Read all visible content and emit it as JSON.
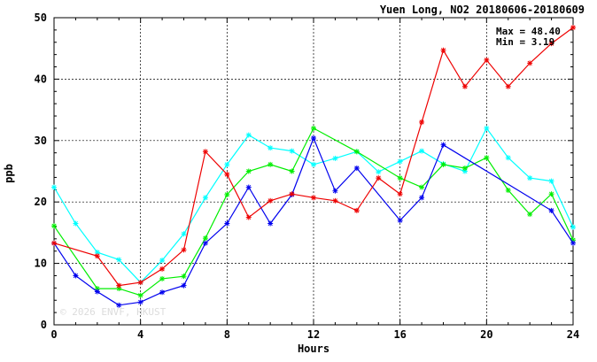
{
  "chart_data": {
    "type": "line",
    "title": "Yuen Long, NO2 20180606-20180609",
    "xlabel": "Hours",
    "ylabel": "ppb",
    "xlim": [
      0,
      24
    ],
    "ylim": [
      0,
      50
    ],
    "x_ticks": [
      0,
      4,
      8,
      12,
      16,
      20,
      24
    ],
    "y_ticks": [
      0,
      10,
      20,
      30,
      40,
      50
    ],
    "grid": true,
    "stats": {
      "max_text": "Max = 48.40",
      "min_text": "Min =  3.19"
    },
    "watermark": "© 2026  ENVF, HKUST",
    "series": [
      {
        "color": "#00ffff",
        "points": [
          [
            0,
            22.4
          ],
          [
            1,
            16.5
          ],
          [
            2,
            11.8
          ],
          [
            3,
            10.6
          ],
          [
            4,
            6.9
          ],
          [
            5,
            10.5
          ],
          [
            6,
            14.8
          ],
          [
            7,
            20.7
          ],
          [
            8,
            26.1
          ],
          [
            9,
            30.9
          ],
          [
            10,
            28.8
          ],
          [
            11,
            28.3
          ],
          [
            12,
            26.1
          ],
          [
            13,
            27.1
          ],
          [
            14,
            28.2
          ],
          [
            15,
            24.9
          ],
          [
            16,
            26.6
          ],
          [
            17,
            28.3
          ],
          [
            18,
            26.2
          ],
          [
            19,
            25.0
          ],
          [
            20,
            32.0
          ],
          [
            21,
            27.2
          ],
          [
            22,
            23.9
          ],
          [
            23,
            23.4
          ],
          [
            24,
            15.9
          ]
        ]
      },
      {
        "color": "#00ee00",
        "points": [
          [
            0,
            16.1
          ],
          [
            2,
            5.9
          ],
          [
            3,
            5.9
          ],
          [
            4,
            4.8
          ],
          [
            5,
            7.5
          ],
          [
            6,
            7.9
          ],
          [
            7,
            14.1
          ],
          [
            8,
            21.2
          ],
          [
            9,
            25.0
          ],
          [
            10,
            26.1
          ],
          [
            11,
            25.0
          ],
          [
            12,
            32.0
          ],
          [
            14,
            28.2
          ],
          [
            16,
            23.9
          ],
          [
            17,
            22.4
          ],
          [
            18,
            26.1
          ],
          [
            19,
            25.5
          ],
          [
            20,
            27.2
          ],
          [
            21,
            21.9
          ],
          [
            22,
            18.0
          ],
          [
            23,
            21.3
          ],
          [
            24,
            13.8
          ]
        ]
      },
      {
        "color": "#0000ee",
        "points": [
          [
            0,
            13.3
          ],
          [
            1,
            8.0
          ],
          [
            2,
            5.4
          ],
          [
            3,
            3.2
          ],
          [
            4,
            3.7
          ],
          [
            5,
            5.3
          ],
          [
            6,
            6.4
          ],
          [
            7,
            13.3
          ],
          [
            8,
            16.5
          ],
          [
            9,
            22.4
          ],
          [
            10,
            16.5
          ],
          [
            11,
            21.2
          ],
          [
            12,
            30.4
          ],
          [
            13,
            21.8
          ],
          [
            14,
            25.5
          ],
          [
            16,
            17.0
          ],
          [
            17,
            20.7
          ],
          [
            18,
            29.3
          ],
          [
            23,
            18.6
          ],
          [
            24,
            13.3
          ]
        ]
      },
      {
        "color": "#ee0000",
        "points": [
          [
            0,
            13.3
          ],
          [
            2,
            11.2
          ],
          [
            3,
            6.4
          ],
          [
            4,
            6.9
          ],
          [
            5,
            9.1
          ],
          [
            6,
            12.2
          ],
          [
            7,
            28.2
          ],
          [
            8,
            24.5
          ],
          [
            9,
            17.5
          ],
          [
            10,
            20.2
          ],
          [
            11,
            21.3
          ],
          [
            12,
            20.7
          ],
          [
            13,
            20.2
          ],
          [
            14,
            18.6
          ],
          [
            15,
            23.9
          ],
          [
            16,
            21.3
          ],
          [
            17,
            33.0
          ],
          [
            18,
            44.7
          ],
          [
            19,
            38.8
          ],
          [
            20,
            43.1
          ],
          [
            21,
            38.8
          ],
          [
            22,
            42.6
          ],
          [
            23,
            45.8
          ],
          [
            24,
            48.4
          ]
        ]
      }
    ]
  }
}
